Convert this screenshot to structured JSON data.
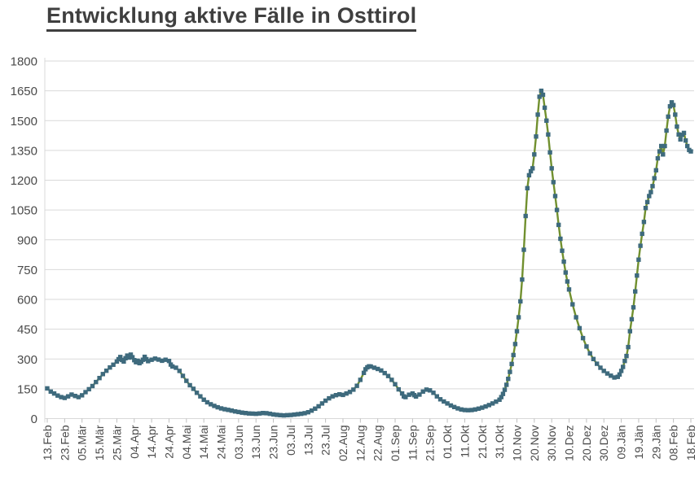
{
  "header": {
    "title": "Entwicklung aktive Fälle in Osttirol"
  },
  "colors": {
    "title_text": "#3f3f3f",
    "axis_label_text": "#4a4a4a",
    "gridline": "#d9d9d9",
    "tick_mark": "#bfbfbf",
    "series_line": "#71902F",
    "series_marker": "#3E6A7D",
    "background": "#ffffff"
  },
  "chart_data": {
    "type": "line",
    "title": "Entwicklung aktive Fälle in Osttirol",
    "xlabel": "",
    "ylabel": "",
    "legend": "none",
    "grid": "horizontal",
    "ylim": [
      0,
      1800
    ],
    "y_ticks": [
      0,
      150,
      300,
      450,
      600,
      750,
      900,
      1050,
      1200,
      1350,
      1500,
      1650,
      1800
    ],
    "x_tick_interval_days": 10,
    "x_tick_labels": [
      "13.Feb",
      "23.Feb",
      "05.Mär",
      "15.Mär",
      "25.Mär",
      "04.Apr",
      "14.Apr",
      "24.Apr",
      "04.Mai",
      "14.Mai",
      "24.Mai",
      "03.Jun",
      "13.Jun",
      "23.Jun",
      "03.Jul",
      "13.Jul",
      "23.Jul",
      "02.Aug",
      "12.Aug",
      "22.Aug",
      "01.Sep",
      "11.Sep",
      "21.Sep",
      "01.Okt",
      "11.Okt",
      "21.Okt",
      "31.Okt",
      "10.Nov",
      "20.Nov",
      "30.Nov",
      "10.Dez",
      "20.Dez",
      "30.Dez",
      "09.Jän",
      "19.Jän",
      "29.Jän",
      "08.Feb",
      "18.Feb"
    ],
    "x_range_days": [
      0,
      370
    ],
    "series": [
      {
        "name": "aktive Fälle",
        "marker": "square",
        "points": [
          [
            0,
            152
          ],
          [
            2,
            136
          ],
          [
            4,
            126
          ],
          [
            6,
            116
          ],
          [
            8,
            108
          ],
          [
            10,
            104
          ],
          [
            12,
            112
          ],
          [
            14,
            121
          ],
          [
            16,
            114
          ],
          [
            18,
            108
          ],
          [
            20,
            117
          ],
          [
            22,
            133
          ],
          [
            24,
            148
          ],
          [
            26,
            164
          ],
          [
            28,
            184
          ],
          [
            30,
            204
          ],
          [
            32,
            224
          ],
          [
            34,
            241
          ],
          [
            36,
            257
          ],
          [
            38,
            271
          ],
          [
            40,
            287
          ],
          [
            41,
            299
          ],
          [
            42,
            310
          ],
          [
            43,
            295
          ],
          [
            44,
            287
          ],
          [
            45,
            304
          ],
          [
            46,
            317
          ],
          [
            47,
            307
          ],
          [
            48,
            322
          ],
          [
            49,
            309
          ],
          [
            50,
            294
          ],
          [
            51,
            284
          ],
          [
            52,
            291
          ],
          [
            53,
            279
          ],
          [
            54,
            286
          ],
          [
            55,
            296
          ],
          [
            56,
            311
          ],
          [
            57,
            299
          ],
          [
            58,
            289
          ],
          [
            60,
            296
          ],
          [
            62,
            302
          ],
          [
            64,
            297
          ],
          [
            66,
            291
          ],
          [
            68,
            296
          ],
          [
            70,
            290
          ],
          [
            71,
            272
          ],
          [
            72,
            262
          ],
          [
            74,
            256
          ],
          [
            76,
            240
          ],
          [
            78,
            215
          ],
          [
            80,
            190
          ],
          [
            82,
            168
          ],
          [
            84,
            150
          ],
          [
            86,
            130
          ],
          [
            88,
            112
          ],
          [
            90,
            95
          ],
          [
            92,
            82
          ],
          [
            94,
            72
          ],
          [
            96,
            64
          ],
          [
            98,
            57
          ],
          [
            100,
            51
          ],
          [
            102,
            47
          ],
          [
            104,
            44
          ],
          [
            106,
            40
          ],
          [
            108,
            36
          ],
          [
            110,
            33
          ],
          [
            112,
            30
          ],
          [
            114,
            28
          ],
          [
            116,
            26
          ],
          [
            118,
            25
          ],
          [
            120,
            24
          ],
          [
            122,
            26
          ],
          [
            124,
            28
          ],
          [
            126,
            27
          ],
          [
            128,
            24
          ],
          [
            130,
            21
          ],
          [
            132,
            19
          ],
          [
            134,
            17
          ],
          [
            136,
            16
          ],
          [
            138,
            17
          ],
          [
            140,
            18
          ],
          [
            142,
            20
          ],
          [
            144,
            22
          ],
          [
            146,
            24
          ],
          [
            148,
            27
          ],
          [
            150,
            32
          ],
          [
            152,
            40
          ],
          [
            154,
            50
          ],
          [
            156,
            62
          ],
          [
            158,
            76
          ],
          [
            160,
            90
          ],
          [
            162,
            102
          ],
          [
            164,
            112
          ],
          [
            166,
            118
          ],
          [
            168,
            122
          ],
          [
            170,
            119
          ],
          [
            172,
            126
          ],
          [
            174,
            134
          ],
          [
            176,
            146
          ],
          [
            178,
            165
          ],
          [
            180,
            195
          ],
          [
            182,
            230
          ],
          [
            183,
            248
          ],
          [
            184,
            258
          ],
          [
            185,
            263
          ],
          [
            186,
            262
          ],
          [
            188,
            256
          ],
          [
            190,
            250
          ],
          [
            192,
            242
          ],
          [
            194,
            229
          ],
          [
            196,
            214
          ],
          [
            198,
            195
          ],
          [
            200,
            173
          ],
          [
            202,
            147
          ],
          [
            204,
            126
          ],
          [
            205,
            112
          ],
          [
            206,
            108
          ],
          [
            208,
            120
          ],
          [
            210,
            126
          ],
          [
            211,
            118
          ],
          [
            212,
            111
          ],
          [
            214,
            121
          ],
          [
            216,
            136
          ],
          [
            218,
            146
          ],
          [
            220,
            142
          ],
          [
            222,
            130
          ],
          [
            224,
            112
          ],
          [
            226,
            97
          ],
          [
            228,
            86
          ],
          [
            230,
            76
          ],
          [
            232,
            66
          ],
          [
            234,
            58
          ],
          [
            236,
            51
          ],
          [
            238,
            46
          ],
          [
            240,
            43
          ],
          [
            242,
            42
          ],
          [
            244,
            43
          ],
          [
            246,
            46
          ],
          [
            248,
            50
          ],
          [
            250,
            55
          ],
          [
            252,
            61
          ],
          [
            254,
            68
          ],
          [
            256,
            76
          ],
          [
            258,
            85
          ],
          [
            260,
            95
          ],
          [
            261,
            108
          ],
          [
            262,
            124
          ],
          [
            263,
            145
          ],
          [
            264,
            170
          ],
          [
            265,
            200
          ],
          [
            266,
            235
          ],
          [
            267,
            275
          ],
          [
            268,
            320
          ],
          [
            269,
            375
          ],
          [
            270,
            440
          ],
          [
            271,
            510
          ],
          [
            272,
            590
          ],
          [
            273,
            700
          ],
          [
            274,
            850
          ],
          [
            275,
            1020
          ],
          [
            276,
            1160
          ],
          [
            277,
            1225
          ],
          [
            278,
            1245
          ],
          [
            279,
            1260
          ],
          [
            280,
            1330
          ],
          [
            281,
            1420
          ],
          [
            282,
            1530
          ],
          [
            283,
            1620
          ],
          [
            284,
            1650
          ],
          [
            285,
            1630
          ],
          [
            286,
            1565
          ],
          [
            287,
            1500
          ],
          [
            288,
            1430
          ],
          [
            289,
            1340
          ],
          [
            290,
            1260
          ],
          [
            291,
            1190
          ],
          [
            292,
            1120
          ],
          [
            293,
            1050
          ],
          [
            294,
            975
          ],
          [
            295,
            905
          ],
          [
            296,
            845
          ],
          [
            297,
            790
          ],
          [
            298,
            735
          ],
          [
            299,
            690
          ],
          [
            300,
            650
          ],
          [
            302,
            575
          ],
          [
            304,
            510
          ],
          [
            306,
            455
          ],
          [
            308,
            405
          ],
          [
            310,
            363
          ],
          [
            312,
            328
          ],
          [
            314,
            300
          ],
          [
            316,
            276
          ],
          [
            318,
            256
          ],
          [
            320,
            240
          ],
          [
            322,
            227
          ],
          [
            324,
            216
          ],
          [
            326,
            207
          ],
          [
            328,
            210
          ],
          [
            329,
            222
          ],
          [
            330,
            240
          ],
          [
            331,
            260
          ],
          [
            332,
            290
          ],
          [
            333,
            315
          ],
          [
            334,
            360
          ],
          [
            335,
            440
          ],
          [
            336,
            500
          ],
          [
            337,
            560
          ],
          [
            338,
            640
          ],
          [
            339,
            720
          ],
          [
            340,
            800
          ],
          [
            341,
            870
          ],
          [
            342,
            930
          ],
          [
            343,
            990
          ],
          [
            344,
            1060
          ],
          [
            345,
            1090
          ],
          [
            346,
            1120
          ],
          [
            347,
            1140
          ],
          [
            348,
            1170
          ],
          [
            349,
            1210
          ],
          [
            350,
            1250
          ],
          [
            351,
            1310
          ],
          [
            352,
            1345
          ],
          [
            353,
            1372
          ],
          [
            354,
            1330
          ],
          [
            355,
            1372
          ],
          [
            356,
            1450
          ],
          [
            357,
            1520
          ],
          [
            358,
            1572
          ],
          [
            359,
            1592
          ],
          [
            360,
            1578
          ],
          [
            361,
            1530
          ],
          [
            362,
            1470
          ],
          [
            363,
            1430
          ],
          [
            364,
            1405
          ],
          [
            365,
            1428
          ],
          [
            366,
            1438
          ],
          [
            367,
            1400
          ],
          [
            368,
            1372
          ],
          [
            369,
            1352
          ],
          [
            370,
            1345
          ]
        ]
      }
    ]
  }
}
